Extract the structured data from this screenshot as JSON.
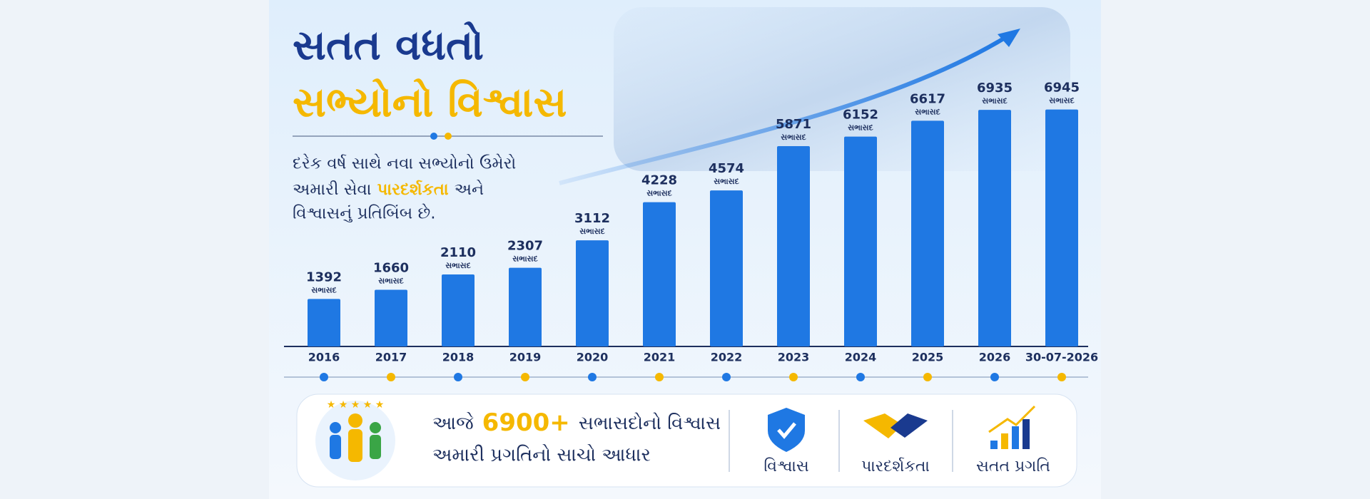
{
  "header": {
    "title_line1": "સતત વધતો",
    "title_line2": "સભ્યોનો વિશ્વાસ"
  },
  "description": {
    "line1": "દરેક વર્ષ સાથે નવા સભ્યોનો ઉમેરો",
    "line2_start": "અમારી સેવા",
    "line2_highlight": "પારદર્શકતા",
    "line2_end": "અને",
    "line3": "વિશ્વાસનું પ્રતિબિંબ છે."
  },
  "chart_data": {
    "type": "bar",
    "categories": [
      "2016",
      "2017",
      "2018",
      "2019",
      "2020",
      "2021",
      "2022",
      "2023",
      "2024",
      "2025",
      "2026",
      "30-07-2026"
    ],
    "values": [
      1392,
      1660,
      2110,
      2307,
      3112,
      4228,
      4574,
      5871,
      6152,
      6617,
      6935,
      6945
    ],
    "value_unit": "સભાસદ",
    "color": "#1f78e3",
    "ylim": [
      0,
      7000
    ]
  },
  "summary": {
    "prefix": "આજે",
    "highlight": "6900+",
    "suffix": "સભાસદોનો વિશ્વાસ",
    "line2": "અમારી પ્રગતિનો સાચો આધાર"
  },
  "features": [
    "વિશ્વાસ",
    "પારદર્શકતા",
    "સતત પ્રગતિ"
  ]
}
